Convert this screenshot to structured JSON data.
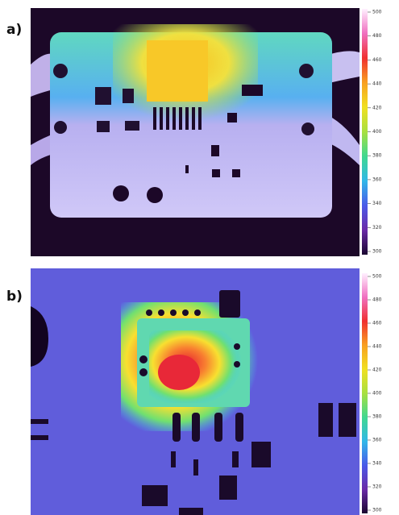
{
  "panels": [
    {
      "label": "a)",
      "colorbar": {
        "lim": [
          300,
          500
        ],
        "ticks": [
          500,
          480,
          460,
          440,
          420,
          400,
          380,
          360,
          340,
          320,
          300
        ]
      }
    },
    {
      "label": "b)",
      "colorbar": {
        "lim": [
          300,
          500
        ],
        "ticks": [
          500,
          480,
          460,
          440,
          420,
          400,
          380,
          360,
          340,
          320,
          300
        ]
      }
    }
  ]
}
